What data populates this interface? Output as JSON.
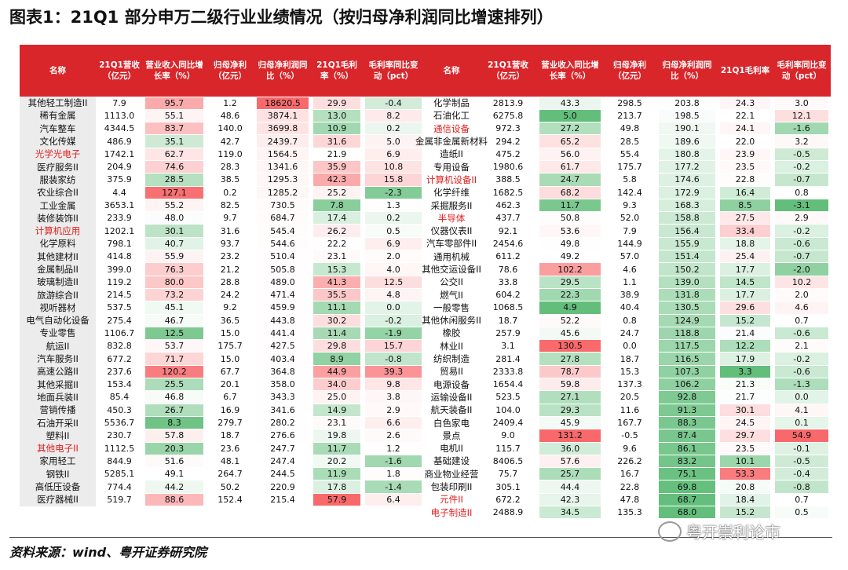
{
  "title": "图表1：21Q1 部分申万二级行业业绩情况（按归母净利润同比增速排列）",
  "color_scale": {
    "low": "#63be7b",
    "mid": "#ffffff",
    "high": "#f8696b",
    "columns": [
      2,
      4,
      5,
      6
    ]
  },
  "highlight_color": "#e02020",
  "tables": [
    {
      "header": [
        "名称",
        "21Q1营收（亿元）",
        "营业收入同比增长率（%）",
        "归母净利（亿元）",
        "归母净利润同比（%）",
        "21Q1毛利率（%）",
        "毛利率同比变动（pct）"
      ],
      "rows": [
        {
          "cells": [
            "其他轻工制造II",
            "7.9",
            "95.7",
            "1.2",
            "18620.5",
            "29.9",
            "-0.4"
          ]
        },
        {
          "cells": [
            "稀有金属",
            "1113.0",
            "55.1",
            "48.6",
            "3874.1",
            "13.0",
            "8.2"
          ]
        },
        {
          "cells": [
            "汽车整车",
            "4344.5",
            "83.7",
            "140.0",
            "3699.8",
            "10.9",
            "0.2"
          ]
        },
        {
          "cells": [
            "文化传媒",
            "486.9",
            "35.1",
            "42.7",
            "2439.7",
            "31.6",
            "5.0"
          ]
        },
        {
          "cells": [
            "光学光电子",
            "1742.1",
            "62.7",
            "119.0",
            "1564.5",
            "21.9",
            "6.9"
          ],
          "highlight": true
        },
        {
          "cells": [
            "医疗服务II",
            "204.9",
            "74.6",
            "28.3",
            "1341.6",
            "35.9",
            "10.8"
          ]
        },
        {
          "cells": [
            "服装家纺",
            "375.9",
            "28.5",
            "38.5",
            "1295.3",
            "42.3",
            "15.8"
          ]
        },
        {
          "cells": [
            "农业综合II",
            "4.4",
            "127.1",
            "0.2",
            "1285.2",
            "25.2",
            "-2.3"
          ]
        },
        {
          "cells": [
            "工业金属",
            "3653.1",
            "55.2",
            "82.5",
            "730.5",
            "7.8",
            "1.3"
          ]
        },
        {
          "cells": [
            "装修装饰II",
            "233.9",
            "48.0",
            "9.7",
            "684.7",
            "17.4",
            "0.2"
          ]
        },
        {
          "cells": [
            "计算机应用",
            "1202.1",
            "30.1",
            "31.6",
            "545.4",
            "26.2",
            "0.5"
          ],
          "highlight": true
        },
        {
          "cells": [
            "化学原料",
            "798.1",
            "40.7",
            "93.7",
            "544.6",
            "22.2",
            "6.9"
          ]
        },
        {
          "cells": [
            "其他建材II",
            "414.8",
            "55.9",
            "23.2",
            "510.4",
            "23.1",
            "2.0"
          ]
        },
        {
          "cells": [
            "金属制品II",
            "399.0",
            "76.3",
            "21.2",
            "505.8",
            "15.3",
            "4.0"
          ]
        },
        {
          "cells": [
            "玻璃制造II",
            "119.2",
            "80.0",
            "28.8",
            "489.0",
            "41.3",
            "12.5"
          ]
        },
        {
          "cells": [
            "旅游综合II",
            "214.5",
            "73.2",
            "24.2",
            "471.4",
            "35.5",
            "4.8"
          ]
        },
        {
          "cells": [
            "视听器材",
            "537.5",
            "45.1",
            "9.2",
            "459.9",
            "11.1",
            "0.0"
          ]
        },
        {
          "cells": [
            "电气自动化设备",
            "275.4",
            "46.7",
            "36.5",
            "443.8",
            "30.2",
            "-0.2"
          ]
        },
        {
          "cells": [
            "专业零售",
            "1106.7",
            "12.5",
            "15.0",
            "441.4",
            "11.4",
            "-1.9"
          ]
        },
        {
          "cells": [
            "航运II",
            "832.8",
            "53.7",
            "175.7",
            "427.5",
            "29.8",
            "15.7"
          ]
        },
        {
          "cells": [
            "汽车服务II",
            "677.2",
            "71.7",
            "15.0",
            "403.4",
            "8.9",
            "-0.8"
          ]
        },
        {
          "cells": [
            "高速公路II",
            "237.6",
            "120.2",
            "67.7",
            "364.8",
            "44.9",
            "39.3"
          ]
        },
        {
          "cells": [
            "其他采掘II",
            "153.4",
            "25.5",
            "20.1",
            "358.0",
            "34.0",
            "9.8"
          ]
        },
        {
          "cells": [
            "地面兵装II",
            "85.4",
            "46.8",
            "6.7",
            "343.3",
            "25.0",
            "3.8"
          ]
        },
        {
          "cells": [
            "营销传播",
            "450.3",
            "26.7",
            "16.9",
            "341.6",
            "14.9",
            "2.9"
          ]
        },
        {
          "cells": [
            "石油开采II",
            "5536.7",
            "8.3",
            "279.7",
            "280.2",
            "23.1",
            "6.6"
          ]
        },
        {
          "cells": [
            "塑料II",
            "230.7",
            "57.8",
            "18.7",
            "276.6",
            "19.8",
            "2.6"
          ]
        },
        {
          "cells": [
            "其他电子II",
            "1112.5",
            "20.3",
            "23.6",
            "247.7",
            "11.7",
            "1.2"
          ],
          "highlight": true
        },
        {
          "cells": [
            "家用轻工",
            "844.9",
            "51.6",
            "48.1",
            "247.4",
            "20.2",
            "-1.6"
          ]
        },
        {
          "cells": [
            "钢铁II",
            "5285.1",
            "49.1",
            "264.7",
            "244.5",
            "11.9",
            "1.8"
          ]
        },
        {
          "cells": [
            "高低压设备",
            "774.4",
            "44.2",
            "50.2",
            "220.9",
            "17.8",
            "-1.4"
          ]
        },
        {
          "cells": [
            "医疗器械II",
            "519.7",
            "88.6",
            "152.4",
            "215.4",
            "57.9",
            "6.4"
          ]
        }
      ]
    },
    {
      "header": [
        "名称",
        "21Q1营收（亿元）",
        "营业收入同比增长率（%）",
        "归母净利（亿元）",
        "归母净利润同比（%）",
        "21Q1毛利率",
        "毛利率同比变动（pct）"
      ],
      "rows": [
        {
          "cells": [
            "化学制品",
            "2813.9",
            "43.3",
            "298.5",
            "203.8",
            "24.3",
            "3.0"
          ]
        },
        {
          "cells": [
            "石油化工",
            "6275.8",
            "5.0",
            "213.7",
            "198.5",
            "22.1",
            "12.1"
          ]
        },
        {
          "cells": [
            "通信设备",
            "972.3",
            "27.2",
            "49.8",
            "190.1",
            "24.1",
            "-1.6"
          ],
          "highlight": true
        },
        {
          "cells": [
            "金属非金属新材料",
            "294.2",
            "65.2",
            "28.5",
            "189.6",
            "22.0",
            "3.2"
          ]
        },
        {
          "cells": [
            "造纸II",
            "475.2",
            "56.0",
            "55.4",
            "180.8",
            "23.9",
            "-0.5"
          ]
        },
        {
          "cells": [
            "专用设备",
            "1980.6",
            "61.7",
            "175.7",
            "177.2",
            "23.5",
            "-0.2"
          ]
        },
        {
          "cells": [
            "计算机设备II",
            "388.5",
            "24.7",
            "5.8",
            "174.6",
            "22.8",
            "-0.7"
          ],
          "highlight": true
        },
        {
          "cells": [
            "化学纤维",
            "1682.5",
            "68.2",
            "142.4",
            "172.9",
            "16.4",
            "0.8"
          ]
        },
        {
          "cells": [
            "采掘服务II",
            "462.3",
            "11.7",
            "9.3",
            "168.3",
            "8.5",
            "-3.1"
          ]
        },
        {
          "cells": [
            "半导体",
            "437.7",
            "50.8",
            "52.0",
            "158.8",
            "27.5",
            "2.9"
          ],
          "highlight": true
        },
        {
          "cells": [
            "仪器仪表II",
            "92.1",
            "53.6",
            "7.9",
            "156.4",
            "33.4",
            "-0.2"
          ]
        },
        {
          "cells": [
            "汽车零部件II",
            "2454.6",
            "49.8",
            "144.9",
            "155.9",
            "18.8",
            "-0.6"
          ]
        },
        {
          "cells": [
            "通用机械",
            "611.2",
            "49.2",
            "57.0",
            "151.4",
            "25.4",
            "-0.7"
          ]
        },
        {
          "cells": [
            "其他交运设备II",
            "78.6",
            "102.2",
            "4.6",
            "150.2",
            "17.7",
            "-2.0"
          ]
        },
        {
          "cells": [
            "公交II",
            "33.8",
            "29.5",
            "1.1",
            "139.0",
            "14.5",
            "10.2"
          ]
        },
        {
          "cells": [
            "燃气II",
            "604.2",
            "22.3",
            "38.9",
            "131.8",
            "17.7",
            "2.0"
          ]
        },
        {
          "cells": [
            "一般零售",
            "1068.5",
            "4.9",
            "40.4",
            "130.5",
            "29.6",
            "4.6"
          ]
        },
        {
          "cells": [
            "其他休闲服务II",
            "18.7",
            "52.2",
            "0.8",
            "124.9",
            "15.2",
            "0.7"
          ]
        },
        {
          "cells": [
            "橡胶",
            "257.9",
            "45.6",
            "24.7",
            "118.8",
            "21.4",
            "-0.6"
          ]
        },
        {
          "cells": [
            "林业II",
            "3.1",
            "130.5",
            "0.0",
            "117.5",
            "12.2",
            "2.1"
          ]
        },
        {
          "cells": [
            "纺织制造",
            "281.4",
            "27.8",
            "18.7",
            "116.5",
            "17.9",
            "-0.2"
          ]
        },
        {
          "cells": [
            "贸易II",
            "2333.8",
            "78.7",
            "15.3",
            "107.3",
            "3.3",
            "-0.6"
          ]
        },
        {
          "cells": [
            "电源设备",
            "1654.4",
            "59.8",
            "137.3",
            "106.2",
            "21.3",
            "-1.3"
          ]
        },
        {
          "cells": [
            "运输设备II",
            "523.5",
            "27.1",
            "20.5",
            "92.8",
            "21.7",
            "0.0"
          ]
        },
        {
          "cells": [
            "航天装备II",
            "104.0",
            "29.3",
            "11.6",
            "91.3",
            "30.1",
            "4.1"
          ]
        },
        {
          "cells": [
            "白色家电",
            "2409.4",
            "45.9",
            "167.7",
            "88.3",
            "24.5",
            "0.1"
          ]
        },
        {
          "cells": [
            "景点",
            "9.0",
            "131.2",
            "-0.5",
            "87.4",
            "29.7",
            "54.9"
          ]
        },
        {
          "cells": [
            "电机II",
            "115.7",
            "36.0",
            "9.6",
            "86.1",
            "23.5",
            "-0.1"
          ]
        },
        {
          "cells": [
            "基础建设",
            "8406.5",
            "57.6",
            "226.2",
            "83.2",
            "10.1",
            "-0.5"
          ]
        },
        {
          "cells": [
            "商业物业经营",
            "75.7",
            "25.7",
            "16.7",
            "75.1",
            "53.3",
            "-0.4"
          ]
        },
        {
          "cells": [
            "包装印刷II",
            "305.1",
            "44.4",
            "22.8",
            "69.8",
            "20.8",
            "-0.8"
          ]
        },
        {
          "cells": [
            "元件II",
            "672.2",
            "42.3",
            "47.8",
            "68.7",
            "18.4",
            "0.7"
          ],
          "highlight": true
        },
        {
          "cells": [
            "电子制造II",
            "2488.9",
            "34.5",
            "135.3",
            "68.0",
            "15.2",
            "0.5"
          ],
          "highlight": true
        }
      ]
    }
  ],
  "source": "资料来源：wind、粤开证券研究院",
  "watermark": "粤开崇利论市"
}
